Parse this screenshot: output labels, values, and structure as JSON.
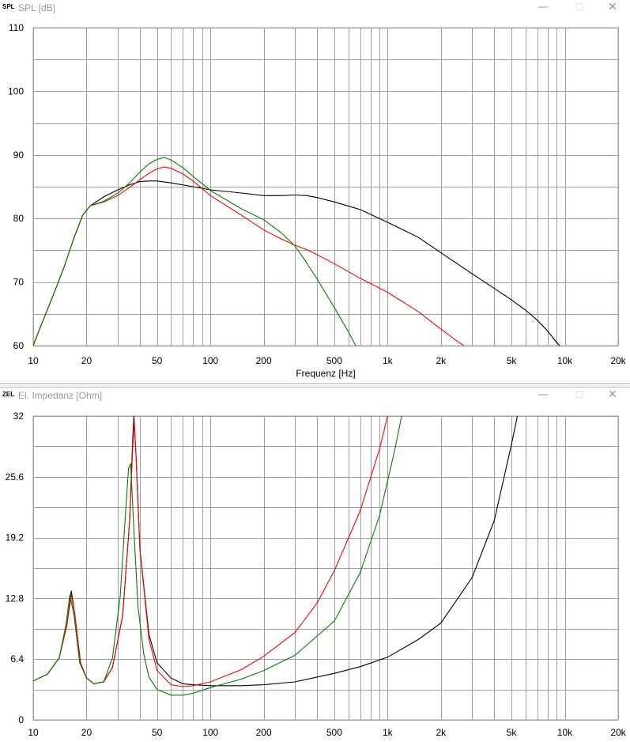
{
  "windows": [
    {
      "tag": "SPL",
      "title": "SPL [dB]",
      "buttons": {
        "minimize": "—",
        "maximize": "☐",
        "close": "✕"
      }
    },
    {
      "tag": "ZEL",
      "title": "El. Impedanz [Ohm]",
      "buttons": {
        "minimize": "—",
        "maximize": "☐",
        "close": "✕"
      }
    }
  ],
  "chart_data": [
    {
      "type": "line",
      "title": "SPL [dB]",
      "xlabel": "Frequenz [Hz]",
      "ylabel": "",
      "xscale": "log",
      "xlim": [
        10,
        20000
      ],
      "ylim": [
        60,
        110
      ],
      "x_ticks": [
        10,
        20,
        50,
        100,
        200,
        500,
        1000,
        2000,
        5000,
        10000,
        20000
      ],
      "x_tick_labels": [
        "10",
        "20",
        "50",
        "100",
        "200",
        "500",
        "1k",
        "2k",
        "5k",
        "10k",
        "20k"
      ],
      "y_ticks": [
        60,
        70,
        80,
        90,
        100,
        110
      ],
      "y_tick_labels": [
        "60",
        "70",
        "80",
        "90",
        "100",
        "110"
      ],
      "grid": true,
      "series": [
        {
          "color": "#000000",
          "points": [
            [
              10,
              60
            ],
            [
              11,
              63
            ],
            [
              13,
              68
            ],
            [
              15,
              72.5
            ],
            [
              17,
              77
            ],
            [
              19,
              80.5
            ],
            [
              21,
              82
            ],
            [
              25,
              83.4
            ],
            [
              30,
              84.5
            ],
            [
              35,
              85.3
            ],
            [
              40,
              85.8
            ],
            [
              45,
              85.9
            ],
            [
              50,
              85.9
            ],
            [
              60,
              85.6
            ],
            [
              80,
              85
            ],
            [
              100,
              84.5
            ],
            [
              150,
              84
            ],
            [
              200,
              83.6
            ],
            [
              250,
              83.6
            ],
            [
              300,
              83.7
            ],
            [
              350,
              83.6
            ],
            [
              400,
              83.3
            ],
            [
              500,
              82.6
            ],
            [
              700,
              81.4
            ],
            [
              1000,
              79.4
            ],
            [
              1500,
              77
            ],
            [
              2000,
              74.6
            ],
            [
              3000,
              71.3
            ],
            [
              4000,
              69
            ],
            [
              5000,
              67.2
            ],
            [
              6000,
              65.6
            ],
            [
              7000,
              64
            ],
            [
              8000,
              62.3
            ],
            [
              9000,
              60.5
            ],
            [
              9500,
              59.8
            ]
          ]
        },
        {
          "color": "#ff0000",
          "points": [
            [
              10,
              60
            ],
            [
              11,
              63
            ],
            [
              13,
              68
            ],
            [
              15,
              72.5
            ],
            [
              17,
              77
            ],
            [
              19,
              80.5
            ],
            [
              21,
              82
            ],
            [
              25,
              82.6
            ],
            [
              30,
              83.6
            ],
            [
              35,
              84.9
            ],
            [
              40,
              86.1
            ],
            [
              45,
              87.1
            ],
            [
              50,
              87.8
            ],
            [
              55,
              88.1
            ],
            [
              60,
              87.9
            ],
            [
              70,
              87
            ],
            [
              80,
              85.9
            ],
            [
              100,
              83.6
            ],
            [
              150,
              80.5
            ],
            [
              200,
              78.2
            ],
            [
              250,
              76.8
            ],
            [
              300,
              75.8
            ],
            [
              350,
              75.1
            ],
            [
              400,
              74.3
            ],
            [
              500,
              72.9
            ],
            [
              700,
              70.6
            ],
            [
              1000,
              68.4
            ],
            [
              1500,
              65.3
            ],
            [
              2000,
              62.6
            ],
            [
              2500,
              60.6
            ],
            [
              2700,
              60
            ]
          ]
        },
        {
          "color": "#008000",
          "points": [
            [
              10,
              60
            ],
            [
              11,
              63
            ],
            [
              13,
              68
            ],
            [
              15,
              72.5
            ],
            [
              17,
              77
            ],
            [
              19,
              80.5
            ],
            [
              21,
              82
            ],
            [
              25,
              82.7
            ],
            [
              30,
              84
            ],
            [
              35,
              85.6
            ],
            [
              40,
              87.3
            ],
            [
              45,
              88.6
            ],
            [
              50,
              89.3
            ],
            [
              55,
              89.6
            ],
            [
              60,
              89.2
            ],
            [
              70,
              88
            ],
            [
              80,
              86.6
            ],
            [
              100,
              84.4
            ],
            [
              150,
              81.5
            ],
            [
              200,
              79.8
            ],
            [
              250,
              77.8
            ],
            [
              300,
              75.7
            ],
            [
              350,
              73
            ],
            [
              400,
              70.5
            ],
            [
              500,
              66
            ],
            [
              600,
              62.2
            ],
            [
              660,
              60
            ]
          ]
        }
      ]
    },
    {
      "type": "line",
      "title": "El. Impedanz [Ohm]",
      "xlabel": "",
      "ylabel": "",
      "xscale": "log",
      "xlim": [
        10,
        20000
      ],
      "ylim": [
        0,
        32
      ],
      "x_ticks": [
        10,
        20,
        50,
        100,
        200,
        500,
        1000,
        2000,
        5000,
        10000,
        20000
      ],
      "x_tick_labels": [
        "10",
        "20",
        "50",
        "100",
        "200",
        "500",
        "1k",
        "2k",
        "5k",
        "10k",
        "20k"
      ],
      "y_ticks": [
        0,
        6.4,
        12.8,
        19.2,
        25.6,
        32
      ],
      "y_tick_labels": [
        "0",
        "6.4",
        "12.8",
        "19.2",
        "25.6",
        "32"
      ],
      "grid": true,
      "series": [
        {
          "color": "#000000",
          "points": [
            [
              10,
              4.1
            ],
            [
              12,
              4.8
            ],
            [
              14,
              6.5
            ],
            [
              15.5,
              10
            ],
            [
              16.4,
              13.6
            ],
            [
              17.2,
              11
            ],
            [
              18.5,
              6
            ],
            [
              20,
              4.4
            ],
            [
              22,
              3.8
            ],
            [
              25,
              4
            ],
            [
              28,
              5.5
            ],
            [
              32,
              11
            ],
            [
              35,
              21
            ],
            [
              36.5,
              30
            ],
            [
              37,
              32
            ],
            [
              38,
              28
            ],
            [
              40,
              18
            ],
            [
              45,
              9
            ],
            [
              50,
              6
            ],
            [
              60,
              4.4
            ],
            [
              70,
              3.8
            ],
            [
              80,
              3.7
            ],
            [
              100,
              3.6
            ],
            [
              150,
              3.6
            ],
            [
              200,
              3.7
            ],
            [
              300,
              4
            ],
            [
              500,
              4.9
            ],
            [
              700,
              5.6
            ],
            [
              1000,
              6.6
            ],
            [
              1500,
              8.5
            ],
            [
              2000,
              10.2
            ],
            [
              3000,
              15
            ],
            [
              4000,
              21
            ],
            [
              5000,
              29
            ],
            [
              5400,
              32
            ]
          ]
        },
        {
          "color": "#ff0000",
          "points": [
            [
              10,
              4.1
            ],
            [
              12,
              4.8
            ],
            [
              14,
              6.5
            ],
            [
              15.5,
              10
            ],
            [
              16.4,
              13.2
            ],
            [
              17.2,
              11
            ],
            [
              18.5,
              6
            ],
            [
              20,
              4.4
            ],
            [
              22,
              3.8
            ],
            [
              25,
              4
            ],
            [
              28,
              5.5
            ],
            [
              32,
              11
            ],
            [
              35,
              21
            ],
            [
              36.5,
              29
            ],
            [
              37.2,
              31.5
            ],
            [
              38,
              28
            ],
            [
              40,
              18
            ],
            [
              45,
              8.5
            ],
            [
              50,
              5.2
            ],
            [
              60,
              3.7
            ],
            [
              70,
              3.5
            ],
            [
              80,
              3.6
            ],
            [
              100,
              4
            ],
            [
              150,
              5.3
            ],
            [
              200,
              6.7
            ],
            [
              300,
              9.2
            ],
            [
              400,
              12.3
            ],
            [
              500,
              15.7
            ],
            [
              700,
              22
            ],
            [
              900,
              28.5
            ],
            [
              1000,
              32
            ]
          ]
        },
        {
          "color": "#008000",
          "points": [
            [
              10,
              4.1
            ],
            [
              12,
              4.8
            ],
            [
              14,
              6.5
            ],
            [
              15.3,
              10
            ],
            [
              16.1,
              13.2
            ],
            [
              17,
              11
            ],
            [
              18.3,
              6
            ],
            [
              20,
              4.4
            ],
            [
              22,
              3.8
            ],
            [
              25,
              4
            ],
            [
              28,
              6.5
            ],
            [
              31,
              13
            ],
            [
              33,
              21
            ],
            [
              34.5,
              26.5
            ],
            [
              35.5,
              27
            ],
            [
              37,
              20
            ],
            [
              39,
              12
            ],
            [
              42,
              7
            ],
            [
              45,
              4.5
            ],
            [
              50,
              3.2
            ],
            [
              60,
              2.6
            ],
            [
              70,
              2.6
            ],
            [
              80,
              2.8
            ],
            [
              100,
              3.4
            ],
            [
              150,
              4.3
            ],
            [
              200,
              5.2
            ],
            [
              300,
              6.8
            ],
            [
              500,
              10.4
            ],
            [
              700,
              15.5
            ],
            [
              900,
              21.5
            ],
            [
              1100,
              28.5
            ],
            [
              1200,
              32
            ]
          ]
        }
      ]
    }
  ]
}
